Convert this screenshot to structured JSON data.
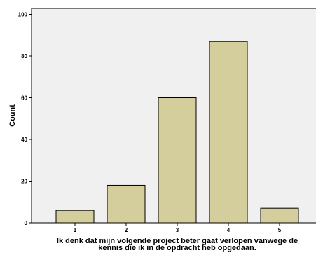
{
  "chart_data": {
    "type": "bar",
    "categories": [
      "1",
      "2",
      "3",
      "4",
      "5"
    ],
    "values": [
      6,
      18,
      60,
      87,
      7
    ],
    "xlabel_lines": [
      "Ik denk dat mijn volgende project beter gaat verlopen vanwege de",
      "kennis die ik in de opdracht heb opgedaan."
    ],
    "ylabel": "Count",
    "ylim": [
      0,
      100
    ],
    "yticks": [
      0,
      20,
      40,
      60,
      80,
      100
    ],
    "grid": false,
    "colors": {
      "bar_fill": "#d3ce9c",
      "bar_stroke": "#000000",
      "plot_background": "#f0f0f0",
      "axis": "#000000"
    }
  }
}
